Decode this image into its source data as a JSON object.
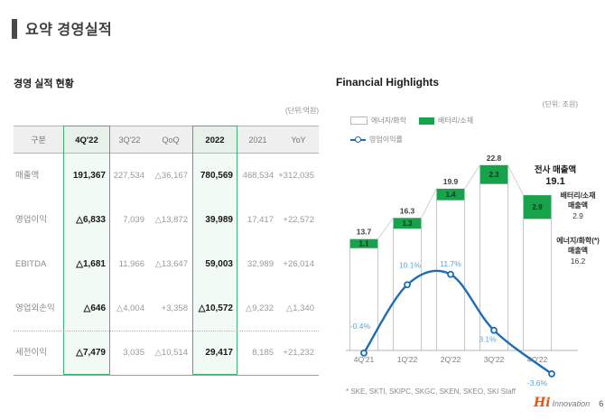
{
  "page": {
    "title": "요약 경영실적",
    "page_number": "6",
    "logo_script": "Hi",
    "logo_word": "Innovation"
  },
  "colors": {
    "green": "#17a24c",
    "green_border": "#3db374",
    "green_tint": "#f2faf5",
    "blue": "#1e6db3",
    "blue_label": "#58a5db",
    "accent_bar": "#4a4a4a",
    "logo_orange": "#e8550f"
  },
  "left": {
    "section_title": "경영 실적 현황",
    "unit_label": "(단위:억원)",
    "table": {
      "columns": [
        "구분",
        "4Q'22",
        "3Q'22",
        "QoQ",
        "2022",
        "2021",
        "YoY"
      ],
      "highlighted_columns": [
        1,
        4
      ],
      "rows": [
        {
          "label": "매출액",
          "cells": [
            "191,367",
            "227,534",
            "△36,167",
            "780,569",
            "468,534",
            "+312,035"
          ]
        },
        {
          "label": "영업이익",
          "cells": [
            "△6,833",
            "7,039",
            "△13,872",
            "39,989",
            "17,417",
            "+22,572"
          ]
        },
        {
          "label": "EBITDA",
          "cells": [
            "△1,681",
            "11,966",
            "△13,647",
            "59,003",
            "32,989",
            "+26,014"
          ]
        },
        {
          "label": "영업외손익",
          "cells": [
            "△646",
            "△4,004",
            "+3,358",
            "△10,572",
            "△9,232",
            "△1,340"
          ]
        },
        {
          "label": "세전이익",
          "cells": [
            "△7,479",
            "3,035",
            "△10,514",
            "29,417",
            "8,185",
            "+21,232"
          ]
        }
      ]
    }
  },
  "right": {
    "section_title": "Financial Highlights",
    "unit_label": "(단위: 조원)",
    "legend": [
      {
        "label": "에너지/화학",
        "swatch": "outline-box"
      },
      {
        "label": "배터리/소재",
        "swatch": "green-box"
      },
      {
        "label": "영업이익률",
        "swatch": "blue-line-marker"
      }
    ],
    "callout": {
      "title": "전사 매출액",
      "value": "19.1"
    },
    "annotations": [
      {
        "line1": "배터리/소재",
        "line2": "매출액",
        "value": "2.9"
      },
      {
        "line1": "에너지/화학(*)",
        "line2": "매출액",
        "value": "16.2"
      }
    ],
    "footnote": "* SKE, SKTI, SKIPC, SKGC, SKEN, SKEO, SKI Staff"
  },
  "chart_data": {
    "type": "bar",
    "subtype": "stacked-bar-with-line-overlay",
    "title": "Financial Highlights",
    "unit": "조원",
    "categories": [
      "4Q'21",
      "1Q'22",
      "2Q'22",
      "3Q'22",
      "4Q'22"
    ],
    "series": [
      {
        "name": "에너지/화학",
        "kind": "bar-stack-bottom",
        "values": [
          12.6,
          15.0,
          18.5,
          20.5,
          16.2
        ]
      },
      {
        "name": "배터리/소재",
        "kind": "bar-stack-top",
        "values": [
          1.1,
          1.3,
          1.4,
          2.3,
          2.9
        ]
      },
      {
        "name": "영업이익률",
        "kind": "line",
        "unit": "%",
        "values": [
          -0.4,
          10.1,
          11.7,
          3.1,
          -3.6
        ]
      }
    ],
    "totals": [
      13.7,
      16.3,
      19.9,
      22.8,
      19.1
    ],
    "total_labels": [
      "13.7",
      "16.3",
      "19.9",
      "22.8",
      ""
    ],
    "green_labels": [
      "1.1",
      "1.3",
      "1.4",
      "2.3",
      "2.9"
    ],
    "pct_labels": [
      "-0.4%",
      "10.1%",
      "11.7%",
      "3.1%",
      "-3.6%"
    ],
    "legend_position": "top-left",
    "ylim": [
      0,
      25
    ],
    "grid": false
  }
}
